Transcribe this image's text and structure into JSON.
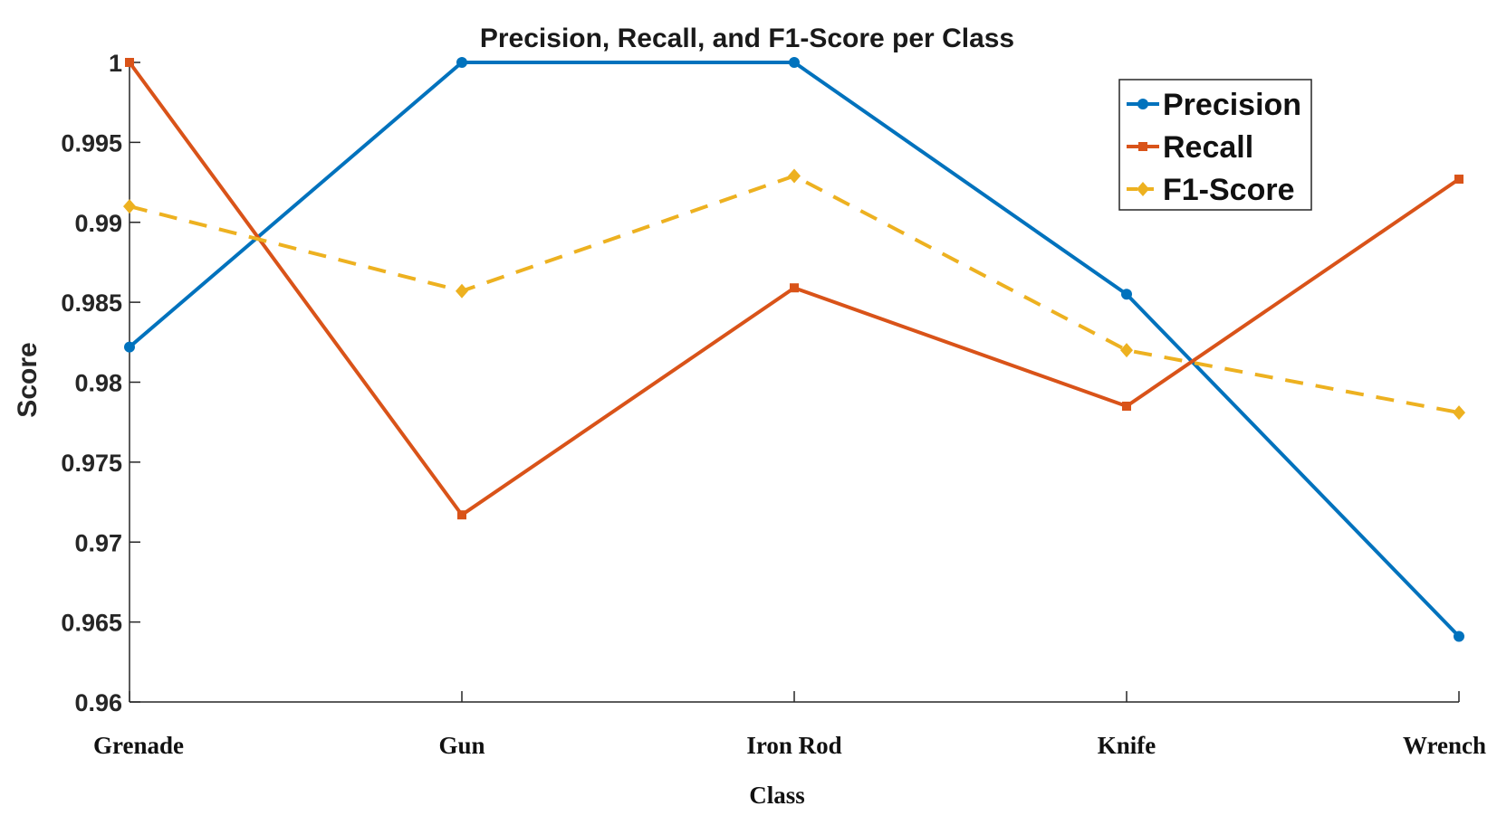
{
  "chart_data": {
    "type": "line",
    "title": "Precision, Recall, and F1-Score per Class",
    "xlabel": "Class",
    "ylabel": "Score",
    "categories": [
      "Grenade",
      "Gun",
      "Iron Rod",
      "Knife",
      "Wrench"
    ],
    "ylim": [
      0.96,
      1.0
    ],
    "yticks": [
      0.96,
      0.965,
      0.97,
      0.975,
      0.98,
      0.985,
      0.99,
      0.995,
      1
    ],
    "ytick_labels": [
      "0.96",
      "0.965",
      "0.97",
      "0.975",
      "0.98",
      "0.985",
      "0.99",
      "0.995",
      "1"
    ],
    "grid": false,
    "legend_position": "top-right",
    "series": [
      {
        "name": "Precision",
        "color": "#0072BD",
        "marker": "circle",
        "dash": "solid",
        "values": [
          0.9822,
          1.0,
          1.0,
          0.9855,
          0.9641
        ]
      },
      {
        "name": "Recall",
        "color": "#D95319",
        "marker": "square",
        "dash": "solid",
        "values": [
          1.0,
          0.9717,
          0.9859,
          0.9785,
          0.9927
        ]
      },
      {
        "name": "F1-Score",
        "color": "#EDB120",
        "marker": "diamond",
        "dash": "dashed",
        "values": [
          0.991,
          0.9857,
          0.9929,
          0.982,
          0.9781
        ]
      }
    ]
  }
}
